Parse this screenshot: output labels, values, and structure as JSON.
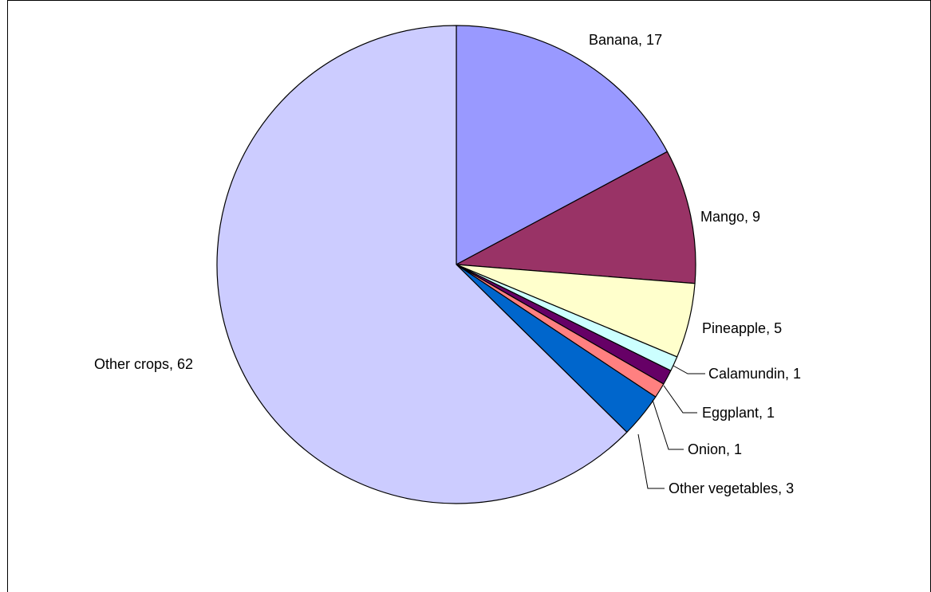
{
  "chart_data": {
    "type": "pie",
    "slices": [
      {
        "label": "Banana",
        "value": 17,
        "color": "#9999FF",
        "display": "Banana, 17"
      },
      {
        "label": "Mango",
        "value": 9,
        "color": "#993366",
        "display": "Mango, 9"
      },
      {
        "label": "Pineapple",
        "value": 5,
        "color": "#FFFFCC",
        "display": "Pineapple, 5"
      },
      {
        "label": "Calamundin",
        "value": 1,
        "color": "#CCFFFF",
        "display": "Calamundin, 1"
      },
      {
        "label": "Eggplant",
        "value": 1,
        "color": "#660066",
        "display": "Eggplant, 1"
      },
      {
        "label": "Onion",
        "value": 1,
        "color": "#FF8080",
        "display": "Onion, 1"
      },
      {
        "label": "Other vegetables",
        "value": 3,
        "color": "#0066CC",
        "display": "Other vegetables, 3"
      },
      {
        "label": "Other crops",
        "value": 62,
        "color": "#CCCCFF",
        "display": "Other crops, 62"
      }
    ],
    "start": "top",
    "direction": "clockwise"
  }
}
